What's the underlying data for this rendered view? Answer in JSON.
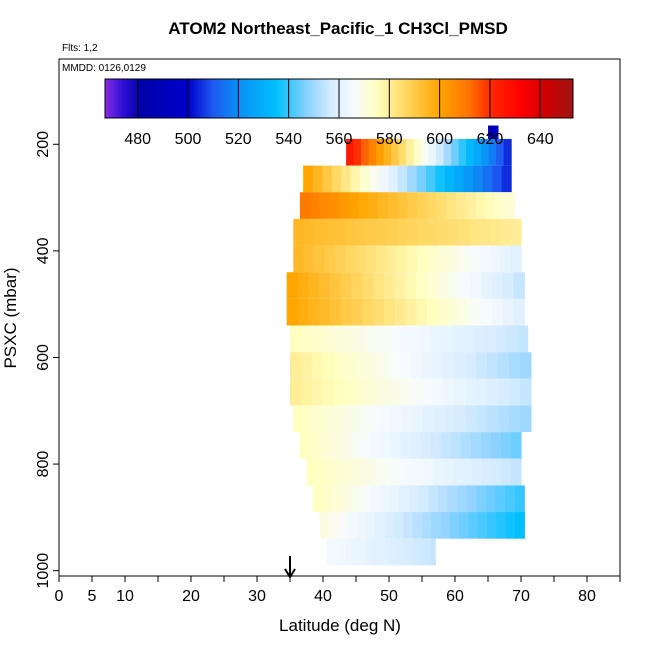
{
  "chart_data": {
    "type": "heatmap",
    "title": "ATOM2 Northeast_Pacific_1 CH3Cl_PMSD",
    "flights_label": "Flts: 1,2",
    "dates_label": "MMDD: 0126,0129",
    "xlabel": "Latitude (deg N)",
    "ylabel": "PSXC (mbar)",
    "xlim": [
      0,
      85
    ],
    "ylim": [
      1010,
      40
    ],
    "x_ticks": [
      0,
      5,
      10,
      20,
      30,
      40,
      50,
      60,
      70,
      80
    ],
    "x_minor_ticks": [
      15,
      25,
      35,
      45,
      55,
      65,
      75,
      85
    ],
    "y_ticks": [
      200,
      400,
      600,
      800,
      1000
    ],
    "colorbar": {
      "range": [
        467,
        653
      ],
      "ticks": [
        480,
        500,
        520,
        540,
        560,
        580,
        600,
        620,
        640
      ],
      "stops": [
        [
          467,
          "#8a2be2"
        ],
        [
          474,
          "#2f10d8"
        ],
        [
          481,
          "#0000a8"
        ],
        [
          500,
          "#0000cd"
        ],
        [
          510,
          "#1e5af0"
        ],
        [
          520,
          "#0a8ff5"
        ],
        [
          535,
          "#00bfff"
        ],
        [
          548,
          "#8fd2ff"
        ],
        [
          557,
          "#d6ecff"
        ],
        [
          566,
          "#f8fbff"
        ],
        [
          575,
          "#ffffc0"
        ],
        [
          586,
          "#ffd966"
        ],
        [
          600,
          "#ffa500"
        ],
        [
          612,
          "#ff7000"
        ],
        [
          620,
          "#ff2a00"
        ],
        [
          632,
          "#ff0000"
        ],
        [
          642,
          "#d00000"
        ],
        [
          653,
          "#a01414"
        ]
      ]
    },
    "marker": {
      "latitude": 35,
      "label": "down-arrow"
    },
    "layers": [
      {
        "p_top": 165,
        "p_bot": 190,
        "lat_start": 65,
        "lat_end": 66.5,
        "v_start": 478,
        "v_end": 500
      },
      {
        "p_top": 190,
        "p_bot": 240,
        "lat_start": 43.5,
        "lat_end": 68.5,
        "v_start": 625,
        "v_end": 505
      },
      {
        "p_top": 240,
        "p_bot": 290,
        "lat_start": 37,
        "lat_end": 68.5,
        "v_start": 600,
        "v_end": 505
      },
      {
        "p_top": 290,
        "p_bot": 340,
        "lat_start": 36.5,
        "lat_end": 69,
        "v_start": 610,
        "v_end": 572
      },
      {
        "p_top": 340,
        "p_bot": 390,
        "lat_start": 35.5,
        "lat_end": 70,
        "v_start": 595,
        "v_end": 580
      },
      {
        "p_top": 390,
        "p_bot": 440,
        "lat_start": 35.5,
        "lat_end": 70,
        "v_start": 595,
        "v_end": 560
      },
      {
        "p_top": 440,
        "p_bot": 490,
        "lat_start": 34.5,
        "lat_end": 70.5,
        "v_start": 600,
        "v_end": 555
      },
      {
        "p_top": 490,
        "p_bot": 540,
        "lat_start": 34.5,
        "lat_end": 70.5,
        "v_start": 600,
        "v_end": 560
      },
      {
        "p_top": 540,
        "p_bot": 590,
        "lat_start": 35,
        "lat_end": 71,
        "v_start": 575,
        "v_end": 555
      },
      {
        "p_top": 590,
        "p_bot": 640,
        "lat_start": 35,
        "lat_end": 71.5,
        "v_start": 580,
        "v_end": 550
      },
      {
        "p_top": 640,
        "p_bot": 690,
        "lat_start": 35,
        "lat_end": 71.5,
        "v_start": 580,
        "v_end": 555
      },
      {
        "p_top": 690,
        "p_bot": 740,
        "lat_start": 35.5,
        "lat_end": 71.5,
        "v_start": 575,
        "v_end": 550
      },
      {
        "p_top": 740,
        "p_bot": 790,
        "lat_start": 36.5,
        "lat_end": 70,
        "v_start": 575,
        "v_end": 545
      },
      {
        "p_top": 790,
        "p_bot": 840,
        "lat_start": 37.5,
        "lat_end": 70,
        "v_start": 575,
        "v_end": 555
      },
      {
        "p_top": 840,
        "p_bot": 890,
        "lat_start": 38.5,
        "lat_end": 70.5,
        "v_start": 575,
        "v_end": 540
      },
      {
        "p_top": 890,
        "p_bot": 940,
        "lat_start": 39.5,
        "lat_end": 70.5,
        "v_start": 570,
        "v_end": 535
      },
      {
        "p_top": 940,
        "p_bot": 990,
        "lat_start": 40.5,
        "lat_end": 57,
        "v_start": 565,
        "v_end": 555
      }
    ]
  }
}
